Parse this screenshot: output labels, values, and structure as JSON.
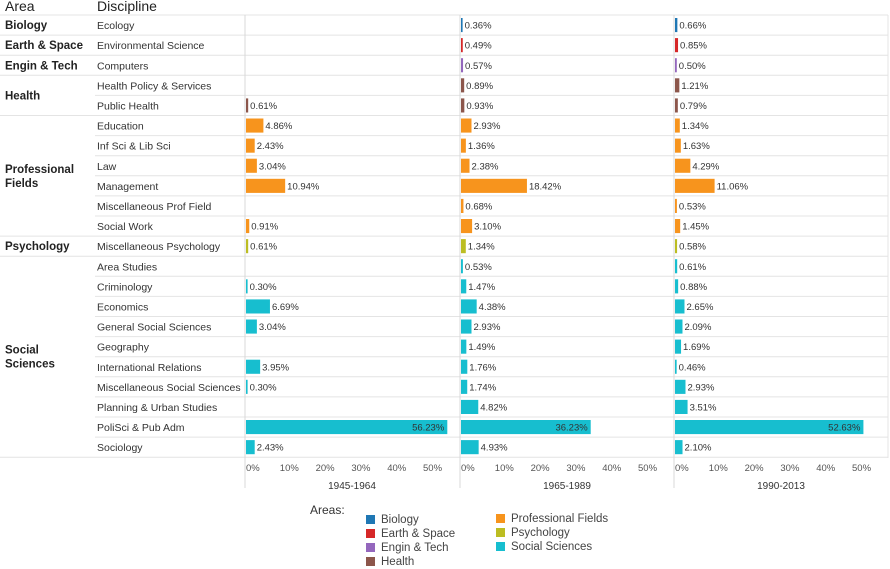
{
  "headers": {
    "area": "Area",
    "discipline": "Discipline"
  },
  "colors": {
    "Biology": "#1f77b4",
    "Earth & Space": "#d62728",
    "Engin & Tech": "#9467bd",
    "Health": "#8c564b",
    "Professional Fields": "#f7941d",
    "Psychology": "#bcbd22",
    "Social Sciences": "#17becf"
  },
  "legend": {
    "title": "Areas:",
    "items": [
      "Biology",
      "Earth & Space",
      "Engin & Tech",
      "Health",
      "Professional Fields",
      "Psychology",
      "Social Sciences"
    ]
  },
  "chart_data": {
    "type": "bar",
    "orientation": "horizontal",
    "periods": [
      "1945-1964",
      "1965-1989",
      "1990-2013"
    ],
    "x_ticks": [
      "0%",
      "10%",
      "20%",
      "30%",
      "40%",
      "50%"
    ],
    "x_tick_values": [
      0,
      10,
      20,
      30,
      40,
      50
    ],
    "xlim": [
      0,
      57
    ],
    "area_labels": [
      {
        "area": "Biology",
        "label": [
          "Biology"
        ]
      },
      {
        "area": "Earth & Space",
        "label": [
          "Earth & Space"
        ]
      },
      {
        "area": "Engin & Tech",
        "label": [
          "Engin & Tech"
        ]
      },
      {
        "area": "Health",
        "label": [
          "Health"
        ]
      },
      {
        "area": "Professional Fields",
        "label": [
          "Professional",
          "Fields"
        ]
      },
      {
        "area": "Psychology",
        "label": [
          "Psychology"
        ]
      },
      {
        "area": "Social Sciences",
        "label": [
          "Social",
          "Sciences"
        ]
      }
    ],
    "rows": [
      {
        "area": "Biology",
        "discipline": "Ecology",
        "values": [
          null,
          0.36,
          0.66
        ],
        "labels": [
          "",
          "0.36%",
          "0.66%"
        ]
      },
      {
        "area": "Earth & Space",
        "discipline": "Environmental Science",
        "values": [
          null,
          0.49,
          0.85
        ],
        "labels": [
          "",
          "0.49%",
          "0.85%"
        ]
      },
      {
        "area": "Engin & Tech",
        "discipline": "Computers",
        "values": [
          null,
          0.57,
          0.5
        ],
        "labels": [
          "",
          "0.57%",
          "0.50%"
        ]
      },
      {
        "area": "Health",
        "discipline": "Health Policy & Services",
        "values": [
          null,
          0.89,
          1.21
        ],
        "labels": [
          "",
          "0.89%",
          "1.21%"
        ]
      },
      {
        "area": "Health",
        "discipline": "Public Health",
        "values": [
          0.61,
          0.93,
          0.79
        ],
        "labels": [
          "0.61%",
          "0.93%",
          "0.79%"
        ]
      },
      {
        "area": "Professional Fields",
        "discipline": "Education",
        "values": [
          4.86,
          2.93,
          1.34
        ],
        "labels": [
          "4.86%",
          "2.93%",
          "1.34%"
        ]
      },
      {
        "area": "Professional Fields",
        "discipline": "Inf Sci & Lib Sci",
        "values": [
          2.43,
          1.36,
          1.63
        ],
        "labels": [
          "2.43%",
          "1.36%",
          "1.63%"
        ]
      },
      {
        "area": "Professional Fields",
        "discipline": "Law",
        "values": [
          3.04,
          2.38,
          4.29
        ],
        "labels": [
          "3.04%",
          "2.38%",
          "4.29%"
        ]
      },
      {
        "area": "Professional Fields",
        "discipline": "Management",
        "values": [
          10.94,
          18.42,
          11.06
        ],
        "labels": [
          "10.94%",
          "18.42%",
          "11.06%"
        ]
      },
      {
        "area": "Professional Fields",
        "discipline": "Miscellaneous Prof Field",
        "values": [
          null,
          0.68,
          0.53
        ],
        "labels": [
          "",
          "0.68%",
          "0.53%"
        ]
      },
      {
        "area": "Professional Fields",
        "discipline": "Social Work",
        "values": [
          0.91,
          3.1,
          1.45
        ],
        "labels": [
          "0.91%",
          "3.10%",
          "1.45%"
        ]
      },
      {
        "area": "Psychology",
        "discipline": "Miscellaneous Psychology",
        "values": [
          0.61,
          1.34,
          0.58
        ],
        "labels": [
          "0.61%",
          "1.34%",
          "0.58%"
        ]
      },
      {
        "area": "Social Sciences",
        "discipline": "Area Studies",
        "values": [
          null,
          0.53,
          0.61
        ],
        "labels": [
          "",
          "0.53%",
          "0.61%"
        ]
      },
      {
        "area": "Social Sciences",
        "discipline": "Criminology",
        "values": [
          0.3,
          1.47,
          0.88
        ],
        "labels": [
          "0.30%",
          "1.47%",
          "0.88%"
        ]
      },
      {
        "area": "Social Sciences",
        "discipline": "Economics",
        "values": [
          6.69,
          4.38,
          2.65
        ],
        "labels": [
          "6.69%",
          "4.38%",
          "2.65%"
        ]
      },
      {
        "area": "Social Sciences",
        "discipline": "General Social Sciences",
        "values": [
          3.04,
          2.93,
          2.09
        ],
        "labels": [
          "3.04%",
          "2.93%",
          "2.09%"
        ]
      },
      {
        "area": "Social Sciences",
        "discipline": "Geography",
        "values": [
          null,
          1.49,
          1.69
        ],
        "labels": [
          "",
          "1.49%",
          "1.69%"
        ]
      },
      {
        "area": "Social Sciences",
        "discipline": "International Relations",
        "values": [
          3.95,
          1.76,
          0.46
        ],
        "labels": [
          "3.95%",
          "1.76%",
          "0.46%"
        ]
      },
      {
        "area": "Social Sciences",
        "discipline": "Miscellaneous Social Sciences",
        "values": [
          0.3,
          1.74,
          2.93
        ],
        "labels": [
          "0.30%",
          "1.74%",
          "2.93%"
        ]
      },
      {
        "area": "Social Sciences",
        "discipline": "Planning & Urban Studies",
        "values": [
          null,
          4.82,
          3.51
        ],
        "labels": [
          "",
          "4.82%",
          "3.51%"
        ]
      },
      {
        "area": "Social Sciences",
        "discipline": "PoliSci & Pub Adm",
        "values": [
          56.23,
          36.23,
          52.63
        ],
        "labels": [
          "56.23%",
          "36.23%",
          "52.63%"
        ]
      },
      {
        "area": "Social Sciences",
        "discipline": "Sociology",
        "values": [
          2.43,
          4.93,
          2.1
        ],
        "labels": [
          "2.43%",
          "4.93%",
          "2.10%"
        ]
      }
    ]
  }
}
